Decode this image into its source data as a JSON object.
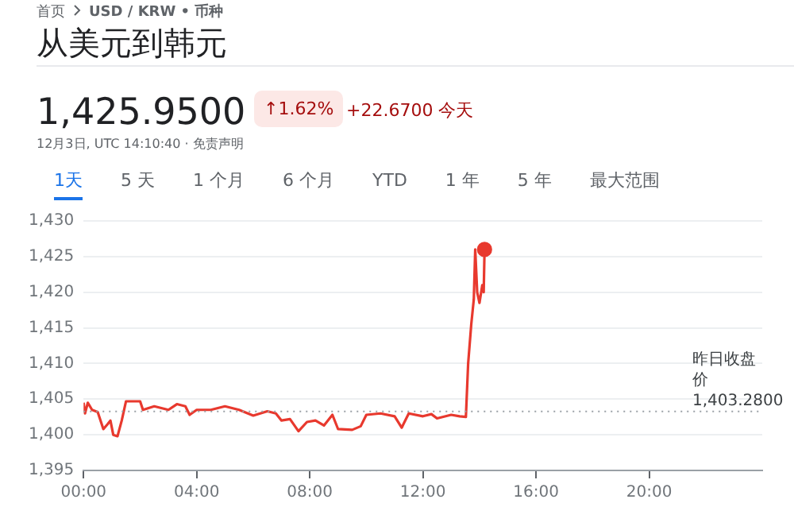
{
  "chart_data": {
    "type": "line",
    "title": "从美元到韩元",
    "annotations": [
      "首页",
      "USD / KRW • 币种",
      "1,425.9500",
      "↑1.62%",
      "+22.6700 今天",
      "12月3日, UTC 14:10:40 · 免责声明",
      "1天",
      "5 天",
      "1 个月",
      "6 个月",
      "YTD",
      "1 年",
      "5 年",
      "最大范围"
    ],
    "x": [
      0,
      0.05,
      0.15,
      0.3,
      0.5,
      0.7,
      0.85,
      0.95,
      1.05,
      1.2,
      1.35,
      1.5,
      2.0,
      2.1,
      2.5,
      3.0,
      3.3,
      3.6,
      3.75,
      4.0,
      4.5,
      5.0,
      5.5,
      6.0,
      6.5,
      6.8,
      7.0,
      7.3,
      7.6,
      7.9,
      8.2,
      8.5,
      8.8,
      9.0,
      9.5,
      9.8,
      10.0,
      10.5,
      11.0,
      11.25,
      11.5,
      12.0,
      12.3,
      12.5,
      13.0,
      13.3,
      13.52,
      13.6,
      13.71,
      13.8,
      13.85,
      13.92,
      14.0,
      14.1,
      14.15,
      14.18
    ],
    "series": [
      {
        "color": "#e8392e",
        "values": [
          1404.5,
          1403,
          1404.5,
          1403.5,
          1403.2,
          1400.8,
          1401.5,
          1402,
          1400,
          1399.8,
          1402,
          1404.7,
          1404.7,
          1403.5,
          1404,
          1403.5,
          1404.3,
          1404,
          1402.8,
          1403.5,
          1403.5,
          1404,
          1403.5,
          1402.7,
          1403.3,
          1403,
          1402,
          1402.2,
          1400.5,
          1401.8,
          1402,
          1401.3,
          1402.8,
          1400.8,
          1400.7,
          1401.2,
          1402.8,
          1403,
          1402.6,
          1401,
          1403,
          1402.6,
          1402.9,
          1402.3,
          1402.8,
          1402.6,
          1402.5,
          1410,
          1415.5,
          1419,
          1426,
          1420,
          1418.5,
          1421,
          1420,
          1426
        ]
      }
    ],
    "xlim": [
      0,
      24
    ],
    "xticks": [
      {
        "value": 0,
        "label": "00:00"
      },
      {
        "value": 4,
        "label": "04:00"
      },
      {
        "value": 8,
        "label": "08:00"
      },
      {
        "value": 12,
        "label": "12:00"
      },
      {
        "value": 16,
        "label": "16:00"
      },
      {
        "value": 20,
        "label": "20:00"
      }
    ],
    "ylim": [
      1395,
      1430
    ],
    "yticks": [
      {
        "value": 1395,
        "label": "1,395"
      },
      {
        "value": 1400,
        "label": "1,400"
      },
      {
        "value": 1405,
        "label": "1,405"
      },
      {
        "value": 1410,
        "label": "1,410"
      },
      {
        "value": 1415,
        "label": "1,415"
      },
      {
        "value": 1420,
        "label": "1,420"
      },
      {
        "value": 1425,
        "label": "1,425"
      },
      {
        "value": 1430,
        "label": "1,430"
      }
    ],
    "ref_lines": [
      {
        "axis": "y",
        "value": 1403.28,
        "label": "昨日收盘价\n1,403.2800",
        "color": "#9aa0a6",
        "line_style": "dotted"
      }
    ],
    "grid": "y",
    "legend": false,
    "marker": "none",
    "line_style": "solid"
  }
}
